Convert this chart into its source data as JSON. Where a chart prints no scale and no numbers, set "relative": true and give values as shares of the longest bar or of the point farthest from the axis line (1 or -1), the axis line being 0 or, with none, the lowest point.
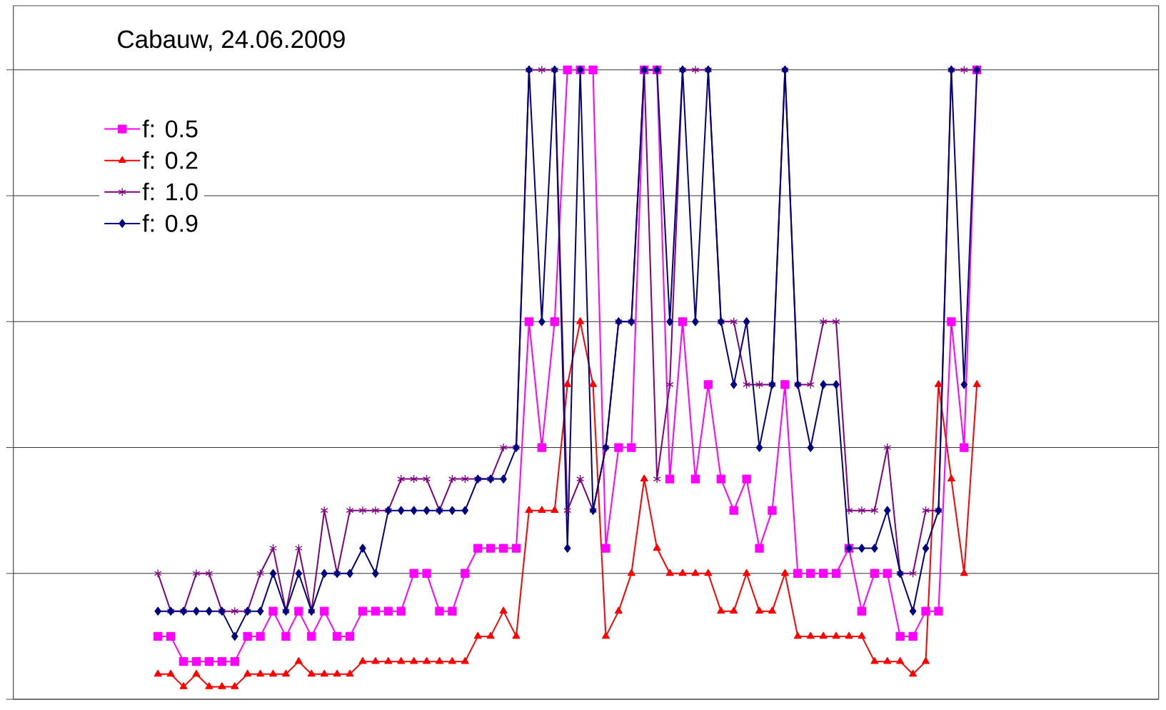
{
  "chart_data": {
    "type": "line",
    "title": "Cabauw, 24.06.2009",
    "categories": [
      null,
      null,
      null,
      null,
      null,
      null,
      null,
      null,
      null,
      null,
      null,
      null,
      null,
      null,
      null,
      null,
      null,
      null,
      null,
      null,
      null,
      null,
      null,
      null,
      null,
      null,
      null,
      null,
      null,
      null,
      null,
      null,
      null,
      null,
      null,
      null,
      null,
      null,
      null,
      null,
      null,
      null,
      null,
      null,
      null,
      null,
      null,
      null,
      null,
      null,
      null,
      null,
      null,
      null,
      null,
      null,
      null,
      null,
      null,
      null,
      null,
      null,
      null,
      null,
      null
    ],
    "relative": true,
    "grid": "y",
    "legend": "top left",
    "line_style": "solid",
    "series": [
      {
        "name": "f: 0.5",
        "color": "#ff00ff",
        "marker": "square",
        "values": [
          0.1,
          0.1,
          0.06,
          0.06,
          0.06,
          0.06,
          0.06,
          0.1,
          0.1,
          0.14,
          0.1,
          0.14,
          0.1,
          0.14,
          0.1,
          0.1,
          0.14,
          0.14,
          0.14,
          0.14,
          0.2,
          0.2,
          0.14,
          0.14,
          0.2,
          0.24,
          0.24,
          0.24,
          0.24,
          0.6,
          0.4,
          0.6,
          1.0,
          1.0,
          1.0,
          0.24,
          0.4,
          0.4,
          1.0,
          1.0,
          0.35,
          0.6,
          0.35,
          0.5,
          0.35,
          0.3,
          0.35,
          0.24,
          0.3,
          0.5,
          0.2,
          0.2,
          0.2,
          0.2,
          0.24,
          0.14,
          0.2,
          0.2,
          0.1,
          0.1,
          0.14,
          0.14,
          0.6,
          0.4,
          1.0
        ]
      },
      {
        "name": "f: 0.2",
        "color": "#ff0000",
        "marker": "triangle",
        "values": [
          0.04,
          0.04,
          0.02,
          0.04,
          0.02,
          0.02,
          0.02,
          0.04,
          0.04,
          0.04,
          0.04,
          0.06,
          0.04,
          0.04,
          0.04,
          0.04,
          0.06,
          0.06,
          0.06,
          0.06,
          0.06,
          0.06,
          0.06,
          0.06,
          0.06,
          0.1,
          0.1,
          0.14,
          0.1,
          0.3,
          0.3,
          0.3,
          0.5,
          0.6,
          0.5,
          0.1,
          0.14,
          0.2,
          0.35,
          0.24,
          0.2,
          0.2,
          0.2,
          0.2,
          0.14,
          0.14,
          0.2,
          0.14,
          0.14,
          0.2,
          0.1,
          0.1,
          0.1,
          0.1,
          0.1,
          0.1,
          0.06,
          0.06,
          0.06,
          0.04,
          0.06,
          0.5,
          0.35,
          0.2,
          0.5
        ]
      },
      {
        "name": "f: 1.0",
        "color": "#800080",
        "marker": "cross",
        "values": [
          0.2,
          0.14,
          0.14,
          0.2,
          0.2,
          0.14,
          0.14,
          0.14,
          0.2,
          0.24,
          0.14,
          0.24,
          0.14,
          0.3,
          0.2,
          0.3,
          0.3,
          0.3,
          0.3,
          0.35,
          0.35,
          0.35,
          0.3,
          0.35,
          0.35,
          0.35,
          0.35,
          0.4,
          0.4,
          1.0,
          1.0,
          1.0,
          0.3,
          0.35,
          0.3,
          0.4,
          0.6,
          0.6,
          1.0,
          0.35,
          0.5,
          1.0,
          1.0,
          1.0,
          0.6,
          0.6,
          0.5,
          0.5,
          0.5,
          1.0,
          0.5,
          0.5,
          0.6,
          0.6,
          0.3,
          0.3,
          0.3,
          0.4,
          0.2,
          0.2,
          0.3,
          0.3,
          1.0,
          1.0,
          1.0
        ]
      },
      {
        "name": "f: 0.9",
        "color": "#000080",
        "marker": "diamond",
        "values": [
          0.14,
          0.14,
          0.14,
          0.14,
          0.14,
          0.14,
          0.1,
          0.14,
          0.14,
          0.2,
          0.14,
          0.2,
          0.14,
          0.2,
          0.2,
          0.2,
          0.24,
          0.2,
          0.3,
          0.3,
          0.3,
          0.3,
          0.3,
          0.3,
          0.3,
          0.35,
          0.35,
          0.35,
          0.4,
          1.0,
          0.6,
          1.0,
          0.24,
          1.0,
          0.3,
          0.4,
          0.6,
          0.6,
          1.0,
          1.0,
          0.6,
          1.0,
          0.6,
          1.0,
          0.6,
          0.5,
          0.6,
          0.4,
          0.5,
          1.0,
          0.5,
          0.4,
          0.5,
          0.5,
          0.24,
          0.24,
          0.24,
          0.3,
          0.2,
          0.14,
          0.24,
          0.3,
          1.0,
          0.5,
          1.0
        ]
      }
    ]
  }
}
